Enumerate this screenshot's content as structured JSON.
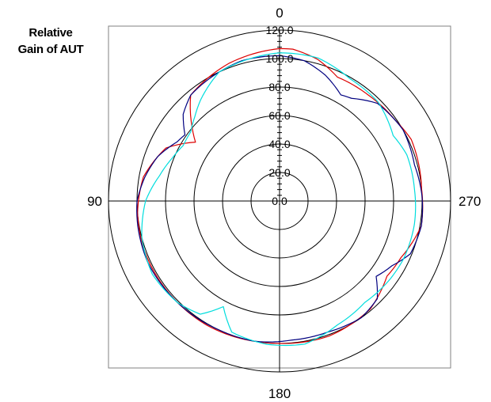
{
  "axis_title": {
    "line1": "Relative",
    "line2": "Gain of AUT"
  },
  "chart_data": {
    "type": "polar-line",
    "angle_direction": "counterclockwise",
    "zero_at": "top",
    "angle_labels": [
      {
        "angle": 0,
        "text": "0"
      },
      {
        "angle": 90,
        "text": "90"
      },
      {
        "angle": 180,
        "text": "180"
      },
      {
        "angle": 270,
        "text": "270"
      }
    ],
    "r_range": [
      0,
      120
    ],
    "rings": [
      0,
      20,
      40,
      60,
      80,
      100,
      120
    ],
    "ring_labels": [
      "0.0",
      "20.0",
      "40.0",
      "60.0",
      "80.0",
      "100.0",
      "120.0"
    ],
    "ylabel": "Relative Gain of AUT",
    "grid": true,
    "legend": "none",
    "series": [
      {
        "color": "#dd0000",
        "points": [
          [
            0,
            107
          ],
          [
            20,
            103
          ],
          [
            40,
            97
          ],
          [
            50,
            80
          ],
          [
            55,
            72
          ],
          [
            65,
            88
          ],
          [
            80,
            97
          ],
          [
            95,
            100
          ],
          [
            110,
            101
          ],
          [
            130,
            101
          ],
          [
            150,
            101
          ],
          [
            170,
            100
          ],
          [
            180,
            100
          ],
          [
            200,
            101
          ],
          [
            220,
            99
          ],
          [
            235,
            92
          ],
          [
            245,
            94
          ],
          [
            260,
            101
          ],
          [
            275,
            100
          ],
          [
            295,
            102
          ],
          [
            305,
            99
          ],
          [
            320,
            97
          ],
          [
            335,
            96
          ],
          [
            345,
            103
          ],
          [
            355,
            107
          ]
        ]
      },
      {
        "color": "#000080",
        "points": [
          [
            0,
            102
          ],
          [
            15,
            102
          ],
          [
            30,
            99
          ],
          [
            40,
            97
          ],
          [
            48,
            91
          ],
          [
            55,
            81
          ],
          [
            60,
            83
          ],
          [
            70,
            91
          ],
          [
            80,
            96
          ],
          [
            90,
            100
          ],
          [
            100,
            101
          ],
          [
            115,
            102
          ],
          [
            135,
            101
          ],
          [
            155,
            100
          ],
          [
            170,
            100
          ],
          [
            185,
            98
          ],
          [
            200,
            98
          ],
          [
            215,
            100
          ],
          [
            225,
            97
          ],
          [
            232,
            86
          ],
          [
            240,
            91
          ],
          [
            248,
            99
          ],
          [
            260,
            101
          ],
          [
            272,
            100
          ],
          [
            285,
            98
          ],
          [
            300,
            100
          ],
          [
            315,
            97
          ],
          [
            325,
            88
          ],
          [
            330,
            86
          ],
          [
            340,
            94
          ],
          [
            350,
            100
          ],
          [
            355,
            101
          ]
        ]
      },
      {
        "color": "#00dddd",
        "points": [
          [
            0,
            104
          ],
          [
            12,
            102
          ],
          [
            25,
            100
          ],
          [
            38,
            90
          ],
          [
            45,
            84
          ],
          [
            52,
            79
          ],
          [
            60,
            78
          ],
          [
            68,
            81
          ],
          [
            78,
            86
          ],
          [
            90,
            94
          ],
          [
            105,
            100
          ],
          [
            120,
            103
          ],
          [
            135,
            101
          ],
          [
            145,
            97
          ],
          [
            152,
            84
          ],
          [
            160,
            98
          ],
          [
            175,
            101
          ],
          [
            190,
            102
          ],
          [
            205,
            96
          ],
          [
            220,
            93
          ],
          [
            235,
            95
          ],
          [
            245,
            96
          ],
          [
            260,
            96
          ],
          [
            275,
            95
          ],
          [
            290,
            95
          ],
          [
            300,
            92
          ],
          [
            315,
            98
          ],
          [
            330,
            99
          ],
          [
            345,
            104
          ],
          [
            355,
            104
          ]
        ]
      }
    ]
  }
}
